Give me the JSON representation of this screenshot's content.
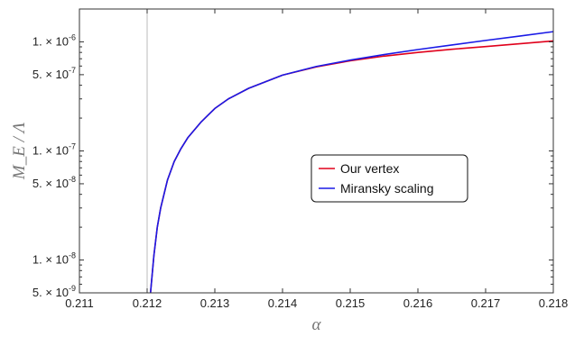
{
  "chart_data": {
    "type": "line",
    "title": "",
    "xlabel": "α",
    "ylabel": "M_E / Λ",
    "xlim": [
      0.211,
      0.218
    ],
    "ylim": [
      5e-09,
      2e-06
    ],
    "yscale": "log",
    "x_ticks": [
      0.211,
      0.212,
      0.213,
      0.214,
      0.215,
      0.216,
      0.217,
      0.218
    ],
    "x_tick_labels": [
      "0.211",
      "0.212",
      "0.213",
      "0.214",
      "0.215",
      "0.216",
      "0.217",
      "0.218"
    ],
    "y_ticks": [
      {
        "value": 5e-09,
        "mantissa": "5.",
        "exponent": "-9"
      },
      {
        "value": 1e-08,
        "mantissa": "1.",
        "exponent": "-8"
      },
      {
        "value": 5e-08,
        "mantissa": "5.",
        "exponent": "-8"
      },
      {
        "value": 1e-07,
        "mantissa": "1.",
        "exponent": "-7"
      },
      {
        "value": 5e-07,
        "mantissa": "5.",
        "exponent": "-7"
      },
      {
        "value": 1e-06,
        "mantissa": "1.",
        "exponent": "-6"
      }
    ],
    "critical_alpha": 0.212,
    "legend_placement": "center-right",
    "series": [
      {
        "name": "Our vertex",
        "color": "#e0001b",
        "x": [
          0.21205,
          0.2121,
          0.21215,
          0.2122,
          0.2123,
          0.2124,
          0.2125,
          0.2126,
          0.2128,
          0.213,
          0.2132,
          0.2135,
          0.214,
          0.2145,
          0.215,
          0.2155,
          0.216,
          0.2165,
          0.217,
          0.2175,
          0.218
        ],
        "y": [
          5e-09,
          1.1e-08,
          2e-08,
          3e-08,
          5.4e-08,
          8e-08,
          1.05e-07,
          1.32e-07,
          1.85e-07,
          2.45e-07,
          3e-07,
          3.75e-07,
          4.95e-07,
          5.9e-07,
          6.7e-07,
          7.4e-07,
          8e-07,
          8.55e-07,
          9.05e-07,
          9.6e-07,
          1.02e-06
        ]
      },
      {
        "name": "Miransky scaling",
        "color": "#1a1ae6",
        "x": [
          0.21205,
          0.2121,
          0.21215,
          0.2122,
          0.2123,
          0.2124,
          0.2125,
          0.2126,
          0.2128,
          0.213,
          0.2132,
          0.2135,
          0.214,
          0.2145,
          0.215,
          0.2155,
          0.216,
          0.2165,
          0.217,
          0.2175,
          0.218
        ],
        "y": [
          5e-09,
          1.1e-08,
          2e-08,
          3e-08,
          5.4e-08,
          8e-08,
          1.05e-07,
          1.32e-07,
          1.85e-07,
          2.45e-07,
          3e-07,
          3.75e-07,
          4.95e-07,
          5.95e-07,
          6.8e-07,
          7.65e-07,
          8.5e-07,
          9.35e-07,
          1.03e-06,
          1.13e-06,
          1.24e-06
        ]
      }
    ]
  }
}
